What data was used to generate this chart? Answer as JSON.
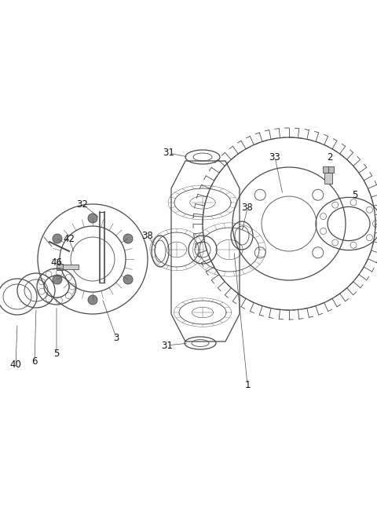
{
  "background_color": "#ffffff",
  "line_color": "#4a4a4a",
  "text_color": "#111111",
  "figsize": [
    4.8,
    6.56
  ],
  "dpi": 100,
  "xlim": [
    0,
    480
  ],
  "ylim": [
    0,
    656
  ]
}
